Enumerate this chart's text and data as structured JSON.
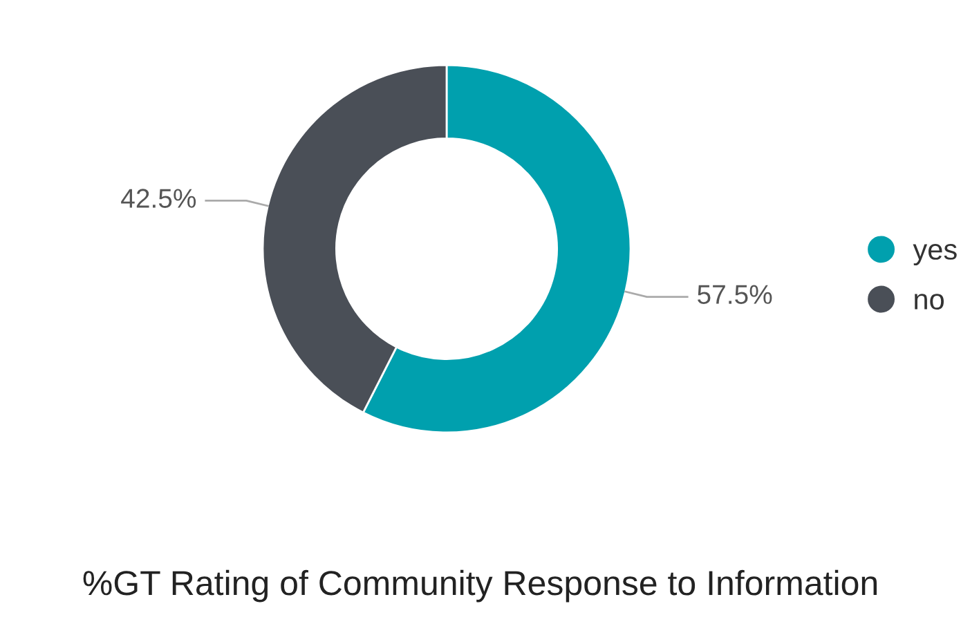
{
  "chart_data": {
    "type": "donut",
    "title": "%GT Rating of Community Response to Information",
    "categories": [
      "yes",
      "no"
    ],
    "values": [
      57.5,
      42.5
    ],
    "colors": [
      "#00a0ae",
      "#4a4f57"
    ],
    "value_labels": [
      "57.5%",
      "42.5%"
    ],
    "legend": "right"
  }
}
